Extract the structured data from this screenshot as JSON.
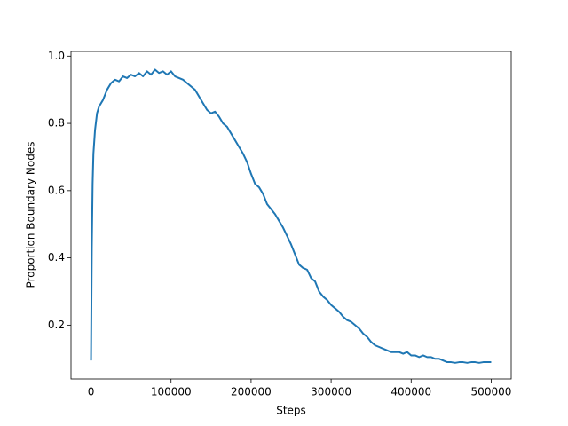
{
  "chart_data": {
    "type": "line",
    "xlabel": "Steps",
    "ylabel": "Proportion Boundary Nodes",
    "x": [
      0,
      1000,
      2000,
      3000,
      5000,
      7500,
      10000,
      15000,
      20000,
      25000,
      30000,
      35000,
      40000,
      45000,
      50000,
      55000,
      60000,
      65000,
      70000,
      75000,
      80000,
      85000,
      90000,
      95000,
      100000,
      105000,
      110000,
      115000,
      120000,
      125000,
      130000,
      135000,
      140000,
      145000,
      150000,
      155000,
      160000,
      165000,
      170000,
      175000,
      180000,
      185000,
      190000,
      195000,
      200000,
      205000,
      210000,
      215000,
      220000,
      225000,
      230000,
      235000,
      240000,
      245000,
      250000,
      255000,
      260000,
      265000,
      270000,
      275000,
      280000,
      285000,
      290000,
      295000,
      300000,
      305000,
      310000,
      315000,
      320000,
      325000,
      330000,
      335000,
      340000,
      345000,
      350000,
      355000,
      360000,
      365000,
      370000,
      375000,
      380000,
      385000,
      390000,
      395000,
      400000,
      405000,
      410000,
      415000,
      420000,
      425000,
      430000,
      435000,
      440000,
      445000,
      450000,
      455000,
      460000,
      465000,
      470000,
      475000,
      480000,
      485000,
      490000,
      495000,
      500000
    ],
    "series": [
      {
        "name": "proportion",
        "color": "#1f77b4",
        "values": [
          0.095,
          0.43,
          0.62,
          0.71,
          0.78,
          0.83,
          0.85,
          0.87,
          0.9,
          0.92,
          0.93,
          0.925,
          0.94,
          0.935,
          0.945,
          0.94,
          0.95,
          0.94,
          0.955,
          0.945,
          0.96,
          0.95,
          0.955,
          0.945,
          0.955,
          0.94,
          0.935,
          0.93,
          0.92,
          0.91,
          0.9,
          0.88,
          0.86,
          0.84,
          0.83,
          0.835,
          0.82,
          0.8,
          0.79,
          0.77,
          0.75,
          0.73,
          0.71,
          0.685,
          0.65,
          0.62,
          0.61,
          0.59,
          0.56,
          0.545,
          0.53,
          0.51,
          0.49,
          0.465,
          0.44,
          0.41,
          0.38,
          0.37,
          0.365,
          0.34,
          0.33,
          0.3,
          0.285,
          0.275,
          0.26,
          0.25,
          0.24,
          0.225,
          0.215,
          0.21,
          0.2,
          0.19,
          0.175,
          0.165,
          0.15,
          0.14,
          0.135,
          0.13,
          0.125,
          0.12,
          0.12,
          0.12,
          0.115,
          0.12,
          0.11,
          0.11,
          0.105,
          0.11,
          0.105,
          0.105,
          0.1,
          0.1,
          0.095,
          0.09,
          0.09,
          0.088,
          0.09,
          0.09,
          0.088,
          0.09,
          0.09,
          0.088,
          0.09,
          0.09,
          0.09
        ]
      }
    ],
    "xlim": [
      -25000,
      525000
    ],
    "xticks": [
      0,
      100000,
      200000,
      300000,
      400000,
      500000
    ],
    "ylim": [
      0.04,
      1.014
    ],
    "yticks": [
      0.2,
      0.4,
      0.6,
      0.8,
      {
        "value": 1,
        "label": "1.0"
      }
    ]
  }
}
